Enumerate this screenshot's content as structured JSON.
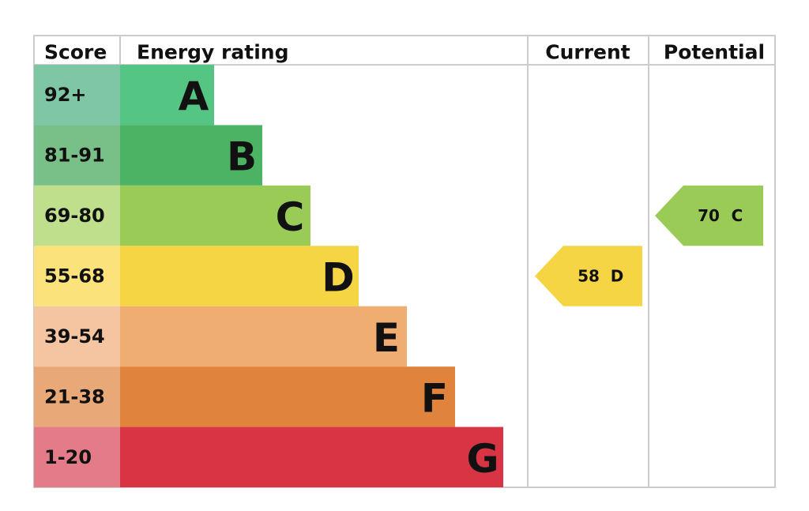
{
  "headers": {
    "score": "Score",
    "rating": "Energy rating",
    "current": "Current",
    "potential": "Potential"
  },
  "bands": [
    {
      "score": "92+",
      "letter": "A",
      "color": "#55c584",
      "score_color": "#7fc6a4"
    },
    {
      "score": "81-91",
      "letter": "B",
      "color": "#4cb264",
      "score_color": "#78bf88"
    },
    {
      "score": "69-80",
      "letter": "C",
      "color": "#9bcb57",
      "score_color": "#bfdf8d"
    },
    {
      "score": "55-68",
      "letter": "D",
      "color": "#f6d545",
      "score_color": "#fbe27a"
    },
    {
      "score": "39-54",
      "letter": "E",
      "color": "#f0ad72",
      "score_color": "#f4c5a0"
    },
    {
      "score": "21-38",
      "letter": "F",
      "color": "#e0843d",
      "score_color": "#e9a877"
    },
    {
      "score": "1-20",
      "letter": "G",
      "color": "#d93444",
      "score_color": "#e37b89"
    }
  ],
  "current": {
    "value": 58,
    "letter": "D"
  },
  "potential": {
    "value": 70,
    "letter": "C"
  }
}
